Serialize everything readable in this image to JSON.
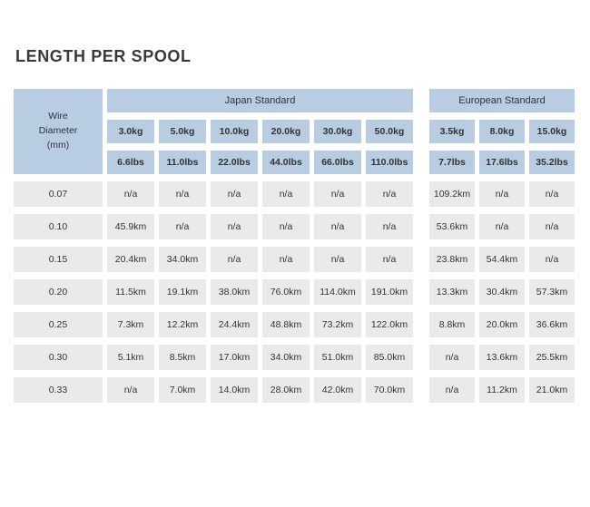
{
  "page_title": "LENGTH PER SPOOL",
  "colors": {
    "header_blue": "#b8cde1",
    "cell_grey": "#eaeaea",
    "text": "#333333"
  },
  "chart_data": {
    "type": "table",
    "title": "LENGTH PER SPOOL",
    "row_header": {
      "label": "Wire\nDiameter\n(mm)"
    },
    "groups": [
      {
        "label": "Japan Standard",
        "kg_labels": [
          "3.0kg",
          "5.0kg",
          "10.0kg",
          "20.0kg",
          "30.0kg",
          "50.0kg"
        ],
        "lbs_labels": [
          "6.6lbs",
          "11.0lbs",
          "22.0lbs",
          "44.0lbs",
          "66.0lbs",
          "110.0lbs"
        ]
      },
      {
        "label": "European Standard",
        "kg_labels": [
          "3.5kg",
          "8.0kg",
          "15.0kg"
        ],
        "lbs_labels": [
          "7.7lbs",
          "17.6lbs",
          "35.2lbs"
        ]
      }
    ],
    "rows": [
      {
        "diameter_mm": "0.07",
        "japan": [
          "n/a",
          "n/a",
          "n/a",
          "n/a",
          "n/a",
          "n/a"
        ],
        "european": [
          "109.2km",
          "n/a",
          "n/a"
        ]
      },
      {
        "diameter_mm": "0.10",
        "japan": [
          "45.9km",
          "n/a",
          "n/a",
          "n/a",
          "n/a",
          "n/a"
        ],
        "european": [
          "53.6km",
          "n/a",
          "n/a"
        ]
      },
      {
        "diameter_mm": "0.15",
        "japan": [
          "20.4km",
          "34.0km",
          "n/a",
          "n/a",
          "n/a",
          "n/a"
        ],
        "european": [
          "23.8km",
          "54.4km",
          "n/a"
        ]
      },
      {
        "diameter_mm": "0.20",
        "japan": [
          "11.5km",
          "19.1km",
          "38.0km",
          "76.0km",
          "114.0km",
          "191.0km"
        ],
        "european": [
          "13.3km",
          "30.4km",
          "57.3km"
        ]
      },
      {
        "diameter_mm": "0.25",
        "japan": [
          "7.3km",
          "12.2km",
          "24.4km",
          "48.8km",
          "73.2km",
          "122.0km"
        ],
        "european": [
          "8.8km",
          "20.0km",
          "36.6km"
        ]
      },
      {
        "diameter_mm": "0.30",
        "japan": [
          "5.1km",
          "8.5km",
          "17.0km",
          "34.0km",
          "51.0km",
          "85.0km"
        ],
        "european": [
          "n/a",
          "13.6km",
          "25.5km"
        ]
      },
      {
        "diameter_mm": "0.33",
        "japan": [
          "n/a",
          "7.0km",
          "14.0km",
          "28.0km",
          "42.0km",
          "70.0km"
        ],
        "european": [
          "n/a",
          "11.2km",
          "21.0km"
        ]
      }
    ]
  }
}
